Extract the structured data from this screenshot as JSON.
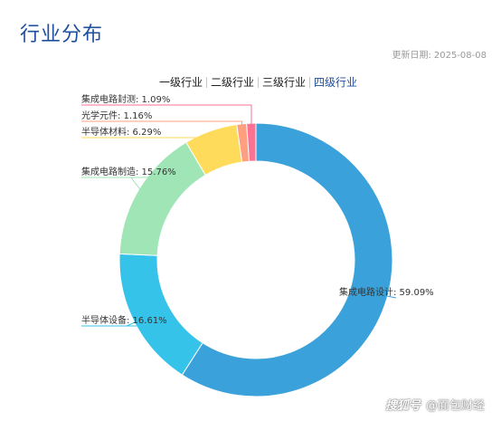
{
  "header": {
    "title": "行业分布",
    "date_label": "更新日期:",
    "date_value": "2025-08-08"
  },
  "tabs": [
    {
      "label": "一级行业",
      "active": false
    },
    {
      "label": "二级行业",
      "active": false
    },
    {
      "label": "三级行业",
      "active": false
    },
    {
      "label": "四级行业",
      "active": true
    }
  ],
  "watermark": {
    "left": "搜狐号",
    "right": "@面包财经"
  },
  "chart_data": {
    "type": "pie",
    "style": "donut",
    "slices": [
      {
        "name": "集成电路设计",
        "value": 59.09,
        "label": "集成电路设计: 59.09%",
        "color": "#3ba1da"
      },
      {
        "name": "半导体设备",
        "value": 16.61,
        "label": "半导体设备: 16.61%",
        "color": "#35c3ea"
      },
      {
        "name": "集成电路制造",
        "value": 15.76,
        "label": "集成电路制造: 15.76%",
        "color": "#9fe5b6"
      },
      {
        "name": "半导体材料",
        "value": 6.29,
        "label": "半导体材料: 6.29%",
        "color": "#ffdb5c"
      },
      {
        "name": "光学元件",
        "value": 1.16,
        "label": "光学元件: 1.16%",
        "color": "#ff9f7f"
      },
      {
        "name": "集成电路封测",
        "value": 1.09,
        "label": "集成电路封测: 1.09%",
        "color": "#fb7293"
      }
    ]
  }
}
